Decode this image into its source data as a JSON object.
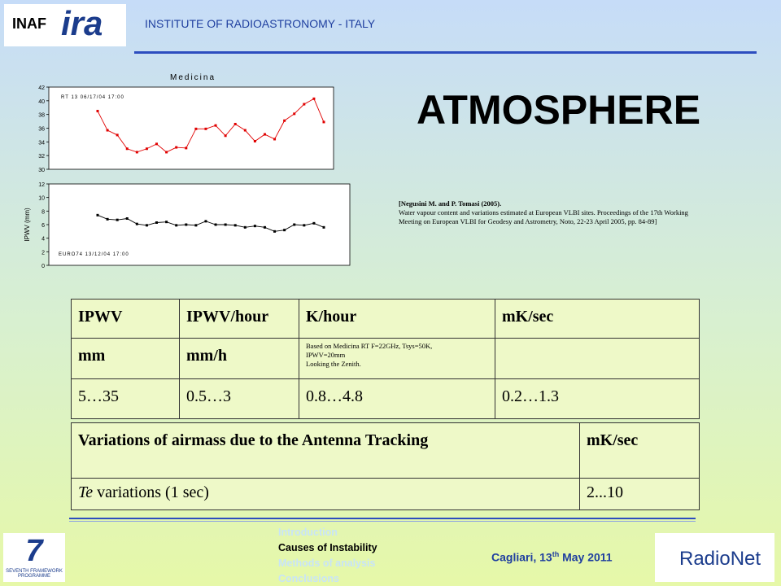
{
  "header": {
    "logo_left": {
      "inaf": "INAF",
      "ira": "ira"
    },
    "institute": "INSTITUTE OF RADIOASTRONOMY - ITALY"
  },
  "title": "ATMOSPHERE",
  "charts": [
    {
      "type": "line",
      "title": "Medicina",
      "annotation": "RT 13 06/17/04 17:00",
      "color": "#e00000",
      "values": [
        38.5,
        35.7,
        35,
        33,
        32.5,
        33,
        33.7,
        32.5,
        33.2,
        33.1,
        35.9,
        35.9,
        36.4,
        34.9,
        36.6,
        35.7,
        34.1,
        35.1,
        34.4,
        37.1,
        38.1,
        39.5,
        40.3,
        36.9
      ],
      "ylim": [
        30,
        42
      ],
      "yticks": [
        30,
        32,
        34,
        36,
        38,
        40,
        42
      ]
    },
    {
      "type": "line",
      "ylabel": "IPWV (mm)",
      "annotation": "EURO74 13/12/04 17:00",
      "color": "#000000",
      "values": [
        7.4,
        6.8,
        6.7,
        6.9,
        6.1,
        5.9,
        6.3,
        6.4,
        5.9,
        6,
        5.9,
        6.5,
        6,
        6,
        5.9,
        5.6,
        5.8,
        5.6,
        5,
        5.2,
        6,
        5.9,
        6.2,
        5.6
      ],
      "ylim": [
        0,
        12
      ],
      "yticks": [
        0,
        2,
        4,
        6,
        8,
        10,
        12
      ]
    }
  ],
  "reference": {
    "title": "[Negusini M. and P. Tomasi (2005).",
    "text": "Water vapour content and variations estimated at European VLBI sites. Proceedings of the 17th Working Meeting on European VLBI for Geodesy and Astrometry, Noto, 22-23 April 2005, pp. 84-89]"
  },
  "table": {
    "rows": [
      [
        "IPWV",
        "IPWV/hour",
        "K/hour",
        "mK/sec"
      ],
      [
        "mm",
        "mm/h",
        [
          "Based on Medicina RT F=22GHz, Tsys=50K,",
          "IPWV=20mm",
          "Looking the Zenith."
        ],
        ""
      ],
      [
        "5…35",
        "0.5…3",
        "0.8…4.8",
        "0.2…1.3"
      ]
    ]
  },
  "table2": {
    "header": [
      "Variations of airmass due to the Antenna Tracking",
      "mK/sec"
    ],
    "row": {
      "term": "Te",
      "text": " variations (1 sec)",
      "value": "2...10"
    }
  },
  "footer": {
    "fp7": "SEVENTH FRAMEWORK PROGRAMME",
    "nav": [
      "Introduction",
      "Causes of Instability",
      "Methods of analysis",
      "Conclusions"
    ],
    "place": "Cagliari, 13",
    "sup": "th",
    "date": " May 2011",
    "radionet": "RadioNet"
  }
}
